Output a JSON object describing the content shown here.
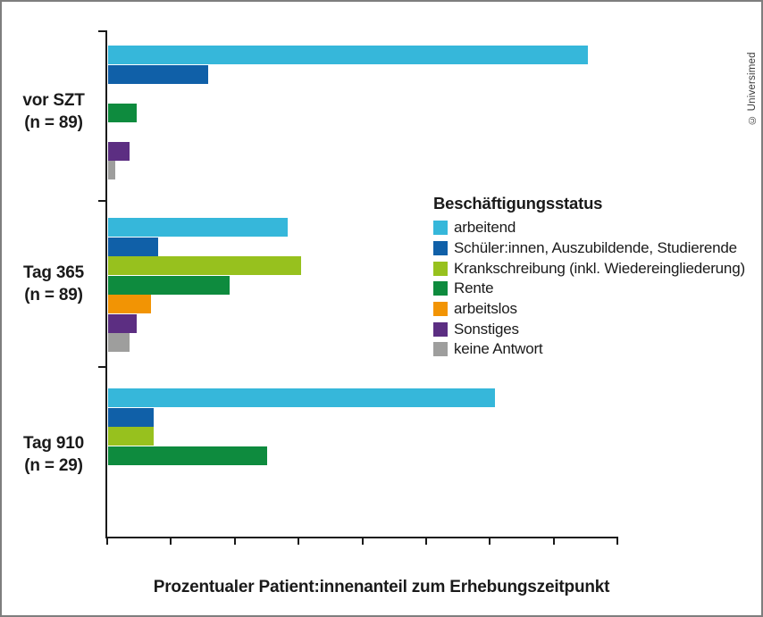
{
  "credit": "© Universimed",
  "chart_data": {
    "type": "bar",
    "orientation": "horizontal",
    "title": "",
    "xlabel": "Prozentualer Patient:innenanteil zum Erhebungszeitpunkt",
    "xlim": [
      0,
      80
    ],
    "xticks": [
      0,
      10,
      20,
      30,
      40,
      50,
      60,
      70,
      80
    ],
    "grid": false,
    "legend": {
      "title": "Beschäftigungsstatus",
      "position": "right"
    },
    "series": [
      {
        "name": "arbeitend",
        "color": "#36B7DA"
      },
      {
        "name": "Schüler:innen, Auszubildende, Studierende",
        "color": "#1060A8"
      },
      {
        "name": "Krankschreibung (inkl. Wiedereingliederung)",
        "color": "#97C11E"
      },
      {
        "name": "Rente",
        "color": "#0E8B3E"
      },
      {
        "name": "arbeitslos",
        "color": "#F29404"
      },
      {
        "name": "Sonstiges",
        "color": "#5C2E82"
      },
      {
        "name": "keine Antwort",
        "color": "#9E9E9D"
      }
    ],
    "groups": [
      {
        "label": "vor SZT",
        "n_label": "(n = 89)",
        "values": [
          75.3,
          15.7,
          0.0,
          4.5,
          0.0,
          3.4,
          1.1
        ],
        "value_labels": [
          "75,3 %",
          "15,7 %",
          "0,0 %",
          "4,5 %",
          "0,0 %",
          "3,4 %",
          "1,1 %"
        ]
      },
      {
        "label": "Tag 365",
        "n_label": "(n = 89)",
        "values": [
          28.1,
          7.9,
          30.3,
          19.1,
          6.7,
          4.5,
          3.4
        ],
        "value_labels": [
          "28,1 %",
          "7,9 %",
          "30,3 %",
          "19,1 %",
          "6,7 %",
          "4,5 %",
          "3,4 %"
        ]
      },
      {
        "label": "Tag 910",
        "n_label": "(n = 29)",
        "values": [
          60.7,
          7.1,
          7.1,
          25.0,
          0.0,
          0.0,
          0.0
        ],
        "value_labels": [
          "60,7 %",
          "7,1 %",
          "7,1 %",
          "25,0 %",
          "0,0 %",
          "0,0 %",
          "0,0 %"
        ]
      }
    ]
  }
}
